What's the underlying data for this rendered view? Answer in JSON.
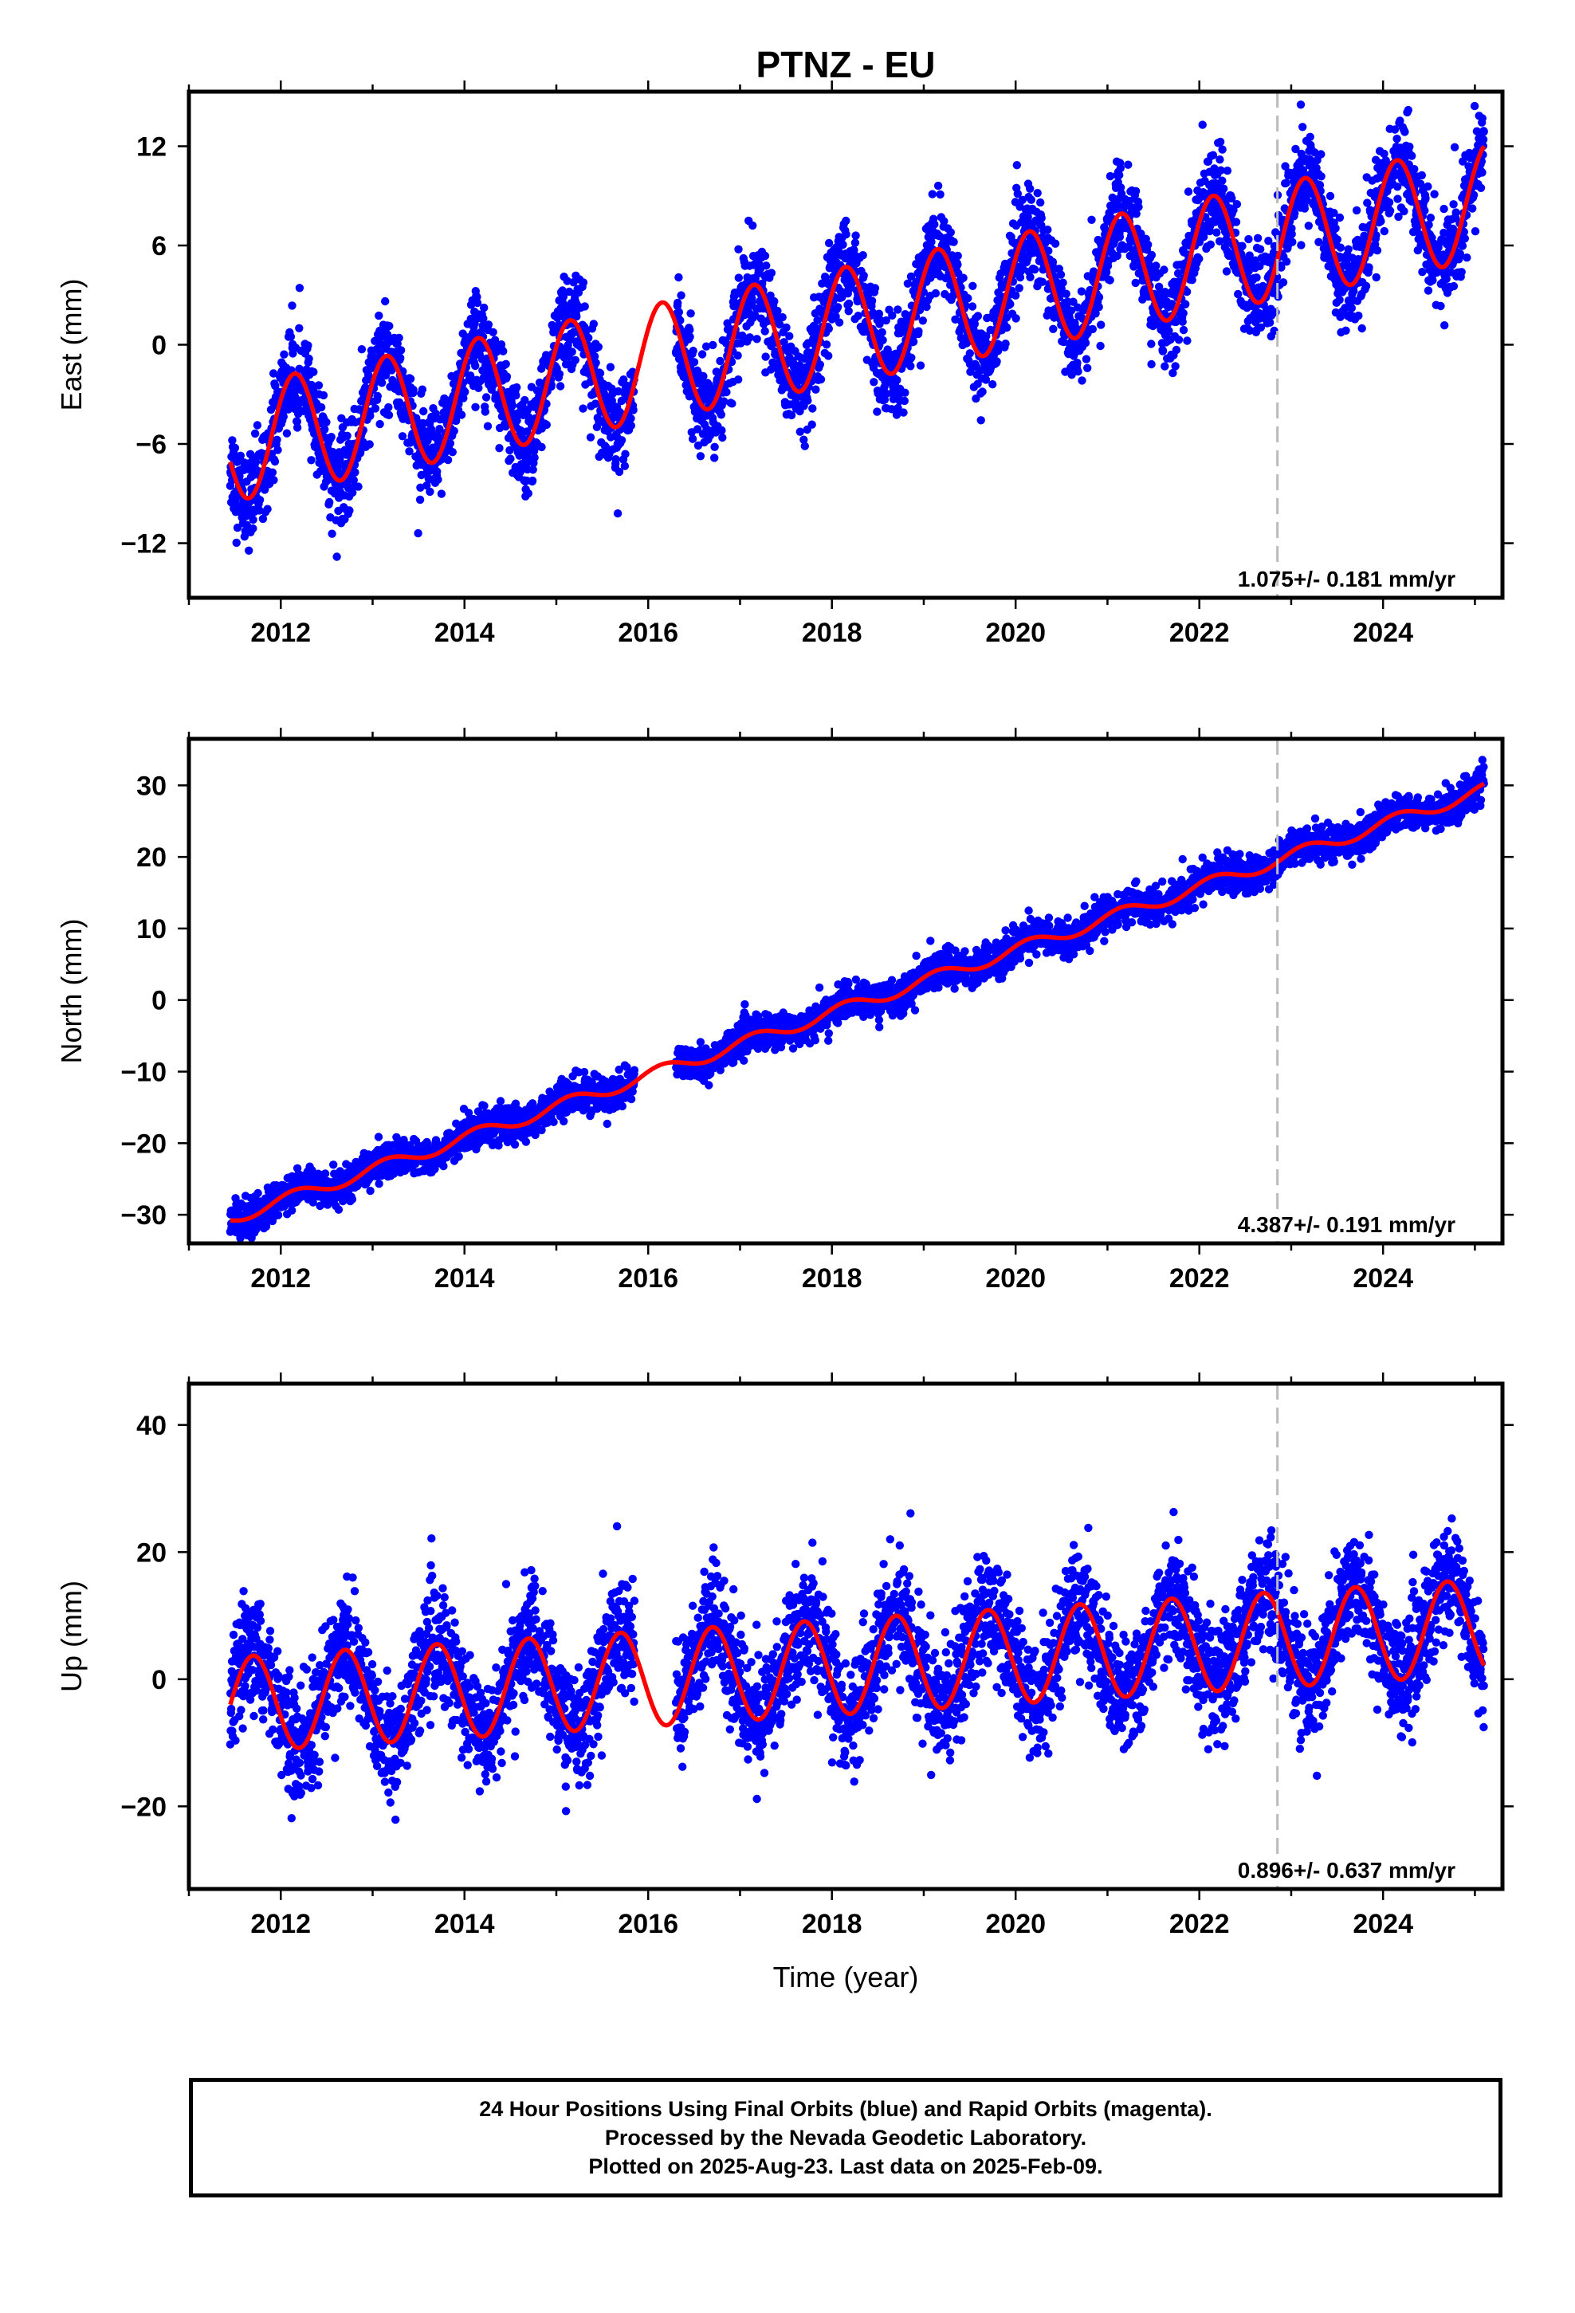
{
  "title": "PTNZ - EU",
  "xlabel": "Time (year)",
  "footer": {
    "line1": "24 Hour Positions Using Final Orbits (blue) and Rapid Orbits (magenta).",
    "line2": "Processed by the Nevada Geodetic Laboratory.",
    "line3": "Plotted on 2025-Aug-23. Last data on 2025-Feb-09."
  },
  "colors": {
    "points": "#0000ff",
    "model": "#ff0000",
    "event_line": "#bbbbbb",
    "frame": "#000000"
  },
  "chart_data": [
    {
      "type": "scatter",
      "ylabel": "East (mm)",
      "xlim": [
        2011.0,
        2025.3
      ],
      "ylim": [
        -15.3,
        15.3
      ],
      "xticks": [
        2012,
        2014,
        2016,
        2018,
        2020,
        2022,
        2024
      ],
      "yticks": [
        -12,
        -6,
        0,
        6,
        12
      ],
      "event_line_x": 2022.85,
      "annotation": "1.075+/- 0.181 mm/yr",
      "model": {
        "start": 2011.45,
        "end": 2025.1,
        "intercept": -6.0,
        "slope": 1.075,
        "amp": 3.5,
        "phase_year": 2011.9
      },
      "noise": 1.4
    },
    {
      "type": "scatter",
      "ylabel": "North (mm)",
      "xlim": [
        2011.0,
        2025.3
      ],
      "ylim": [
        -34,
        36.5
      ],
      "xticks": [
        2012,
        2014,
        2016,
        2018,
        2020,
        2022,
        2024
      ],
      "yticks": [
        -30,
        -20,
        -10,
        0,
        10,
        20,
        30
      ],
      "event_line_x": 2022.85,
      "annotation": "4.387+/- 0.191 mm/yr",
      "model": {
        "start": 2011.45,
        "end": 2025.1,
        "intercept": -30.5,
        "slope": 4.387,
        "amp": 0.9,
        "phase_year": 2011.9
      },
      "noise": 1.2
    },
    {
      "type": "scatter",
      "ylabel": "Up (mm)",
      "xlim": [
        2011.0,
        2025.3
      ],
      "ylim": [
        -33,
        46.5
      ],
      "xticks": [
        2012,
        2014,
        2016,
        2018,
        2020,
        2022,
        2024
      ],
      "yticks": [
        -20,
        0,
        20,
        40
      ],
      "event_line_x": 2022.85,
      "annotation": "0.896+/- 0.637 mm/yr",
      "model": {
        "start": 2011.45,
        "end": 2025.1,
        "intercept": -4.0,
        "slope": 0.896,
        "amp": 7.5,
        "phase_year": 2011.45
      },
      "noise": 4.5
    }
  ]
}
